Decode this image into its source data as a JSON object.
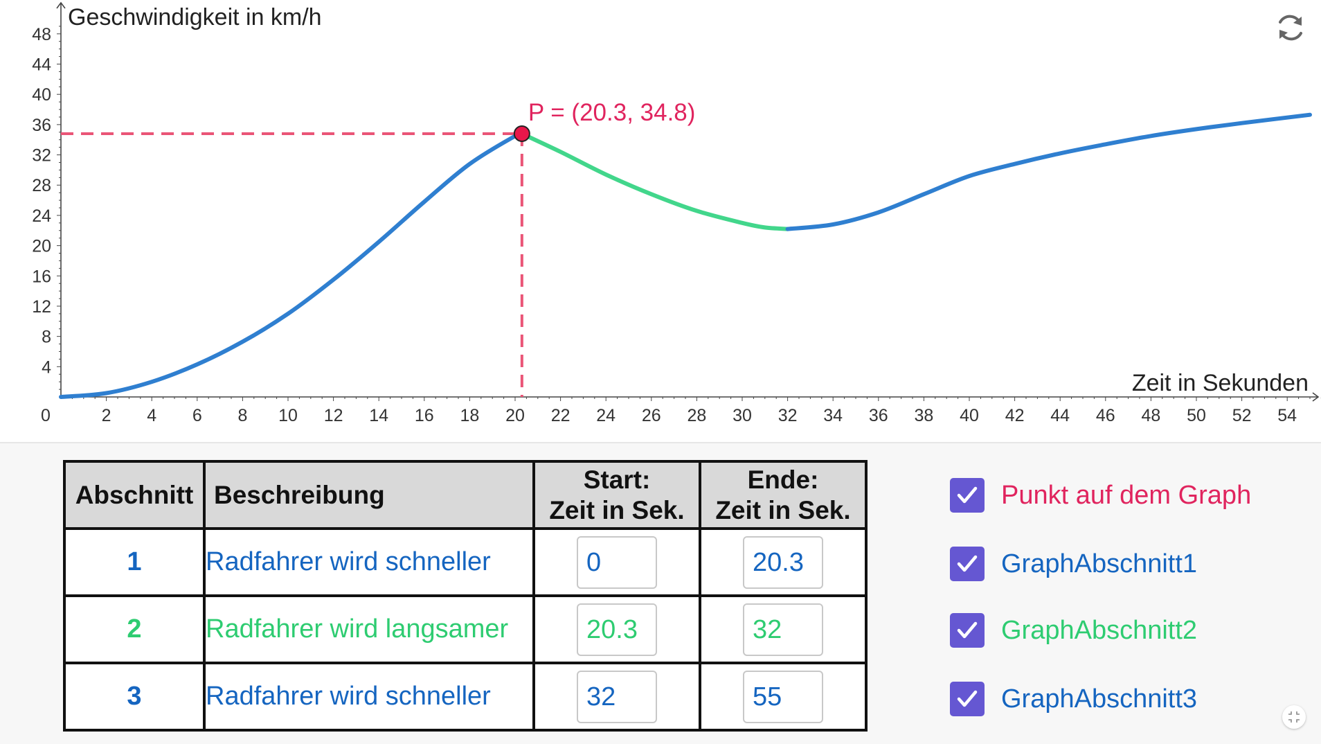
{
  "colors": {
    "blue": "#2f7fd0",
    "green": "#42d68b",
    "point_red": "#e8174a",
    "dashed_red": "#ea5577",
    "checkbox_purple": "#6557d2",
    "text_blue": "#1565c0",
    "text_green": "#2ecc71",
    "text_red": "#e0245e"
  },
  "chart_data": {
    "type": "line",
    "ylabel": "Geschwindigkeit in km/h",
    "xlabel": "Zeit in Sekunden",
    "xlim": [
      0,
      55
    ],
    "ylim": [
      0,
      48
    ],
    "x_ticks": [
      0,
      2,
      4,
      6,
      8,
      10,
      12,
      14,
      16,
      18,
      20,
      22,
      24,
      26,
      28,
      30,
      32,
      34,
      36,
      38,
      40,
      42,
      44,
      46,
      48,
      50,
      52,
      54
    ],
    "y_ticks": [
      4,
      8,
      12,
      16,
      20,
      24,
      28,
      32,
      36,
      40,
      44,
      48
    ],
    "point": {
      "label": "P = (20.3, 34.8)",
      "x": 20.3,
      "y": 34.8
    },
    "series": [
      {
        "color": "#2f7fd0",
        "x": [
          0,
          2,
          4,
          6,
          8,
          10,
          12,
          14,
          16,
          18,
          20,
          20.3
        ],
        "y": [
          0,
          0.5,
          2,
          4.3,
          7.3,
          11,
          15.5,
          20.5,
          25.8,
          30.8,
          34.5,
          34.8
        ]
      },
      {
        "color": "#42d68b",
        "x": [
          20.3,
          22,
          24,
          26,
          28,
          30,
          31,
          32
        ],
        "y": [
          34.8,
          32.4,
          29.4,
          26.8,
          24.6,
          23.0,
          22.4,
          22.2
        ]
      },
      {
        "color": "#2f7fd0",
        "x": [
          32,
          34,
          36,
          38,
          40,
          42,
          44,
          46,
          48,
          50,
          52,
          55
        ],
        "y": [
          22.2,
          22.8,
          24.4,
          26.8,
          29.2,
          30.8,
          32.2,
          33.4,
          34.5,
          35.4,
          36.2,
          37.3
        ]
      }
    ]
  },
  "table": {
    "headers": {
      "abschnitt": "Abschnitt",
      "beschreibung": "Beschreibung",
      "start_line1": "Start:",
      "start_line2": "Zeit in Sek.",
      "ende_line1": "Ende:",
      "ende_line2": "Zeit in Sek."
    },
    "rows": [
      {
        "nr": "1",
        "desc": "Radfahrer wird schneller",
        "start": "0",
        "end": "20.3",
        "color": "#1565c0"
      },
      {
        "nr": "2",
        "desc": "Radfahrer wird langsamer",
        "start": "20.3",
        "end": "32",
        "color": "#2ecc71"
      },
      {
        "nr": "3",
        "desc": "Radfahrer wird schneller",
        "start": "32",
        "end": "55",
        "color": "#1565c0"
      }
    ]
  },
  "checkboxes": [
    {
      "label": "Punkt auf dem Graph",
      "checked": true,
      "color": "#e0245e"
    },
    {
      "label": "GraphAbschnitt1",
      "checked": true,
      "color": "#1565c0"
    },
    {
      "label": "GraphAbschnitt2",
      "checked": true,
      "color": "#2ecc71"
    },
    {
      "label": "GraphAbschnitt3",
      "checked": true,
      "color": "#1565c0"
    }
  ],
  "icons": {
    "reset": "refresh-icon",
    "collapse": "collapse-icon",
    "check": "checkmark-icon"
  }
}
